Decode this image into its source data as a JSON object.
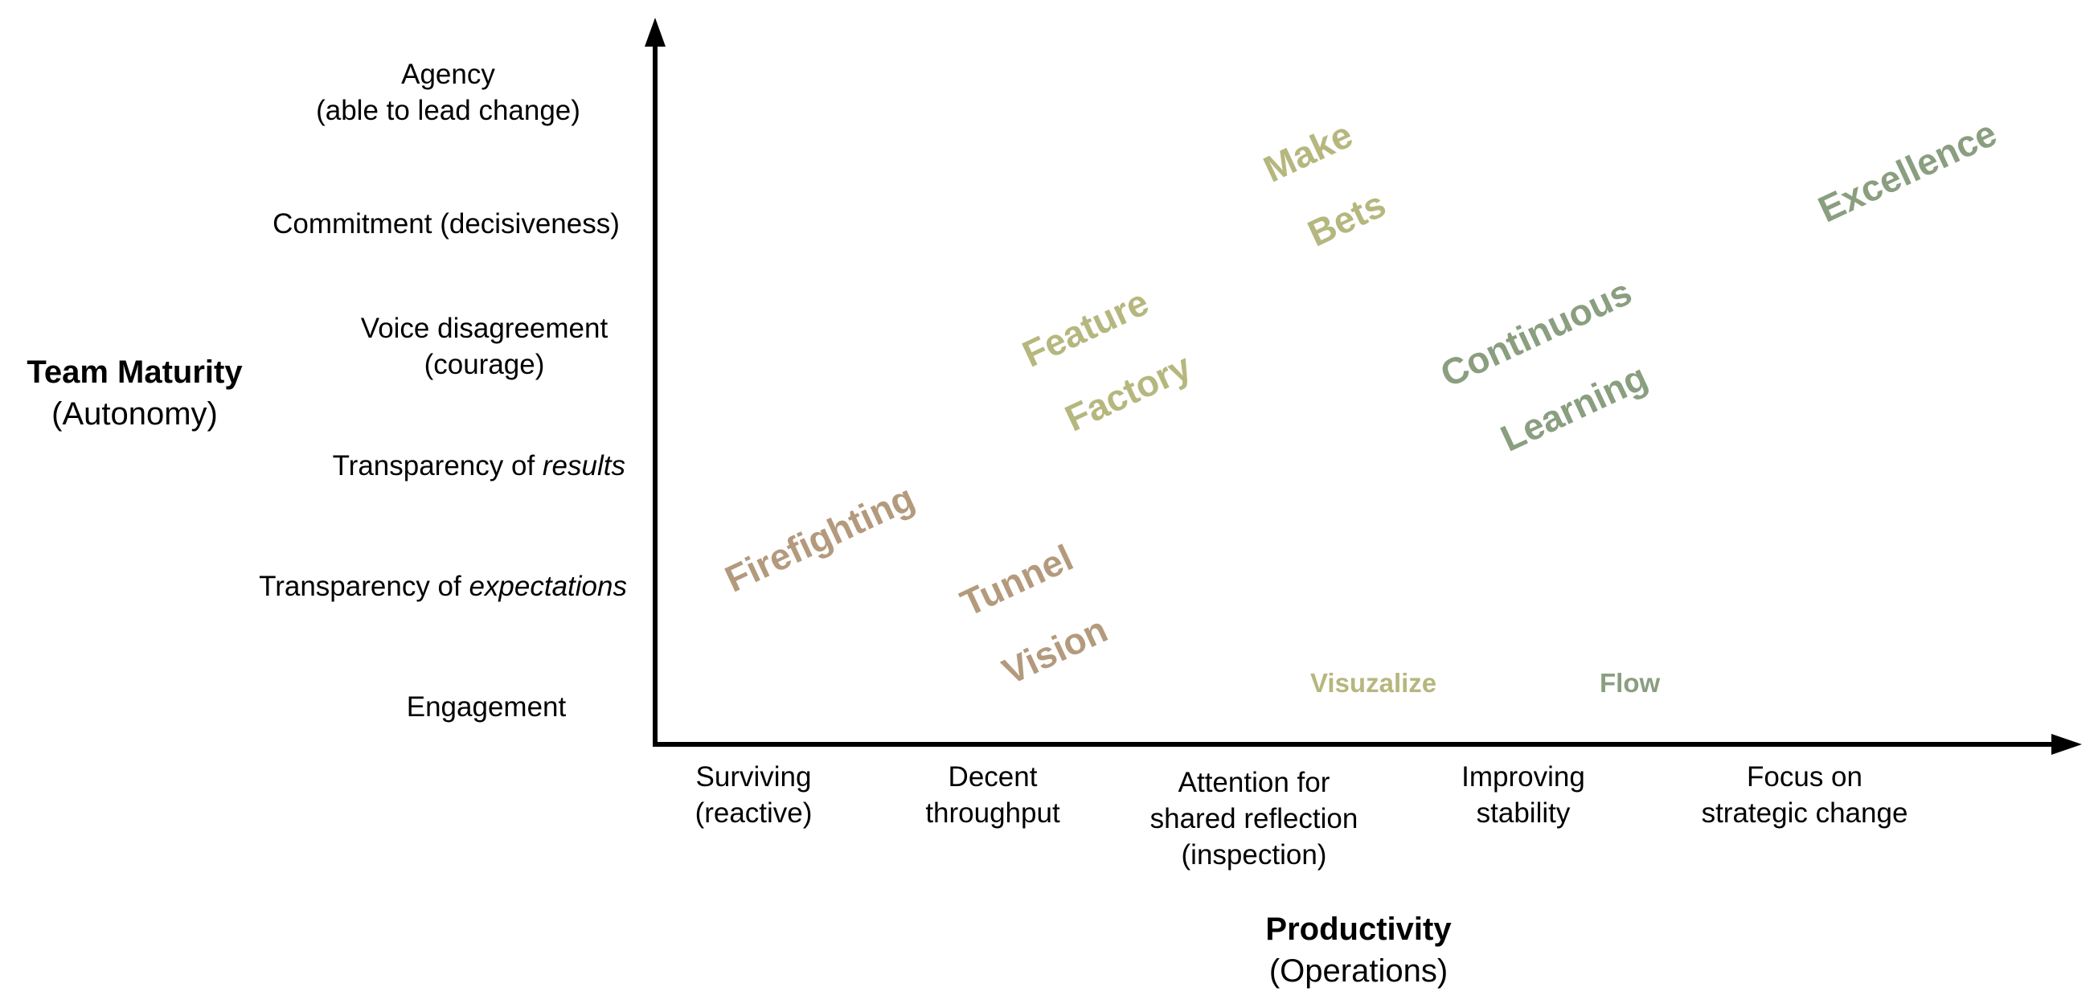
{
  "y_axis": {
    "title": "Team Maturity",
    "subtitle": "(Autonomy)",
    "levels": [
      {
        "line1": "Agency",
        "line2": "(able to lead change)"
      },
      {
        "line1": "Commitment (decisiveness)",
        "line2": ""
      },
      {
        "line1": "Voice disagreement",
        "line2": "(courage)"
      },
      {
        "prefix": "Transparency of ",
        "emph": "results"
      },
      {
        "prefix": "Transparency of ",
        "emph": "expectations"
      },
      {
        "line1": "Engagement",
        "line2": ""
      }
    ]
  },
  "x_axis": {
    "title": "Productivity",
    "subtitle": "(Operations)",
    "levels": [
      {
        "line1": "Surviving",
        "line2": "(reactive)",
        "line3": ""
      },
      {
        "line1": "Decent",
        "line2": "throughput",
        "line3": ""
      },
      {
        "line1": "Attention for",
        "line2": "shared reflection",
        "line3": "(inspection)"
      },
      {
        "line1": "Improving",
        "line2": "stability",
        "line3": ""
      },
      {
        "line1": "Focus on",
        "line2": "strategic change",
        "line3": ""
      }
    ]
  },
  "stages": {
    "firefighting": "Firefighting",
    "tunnel_1": "Tunnel",
    "tunnel_2": "Vision",
    "feature_1": "Feature",
    "feature_2": "Factory",
    "make_1": "Make",
    "make_2": "Bets",
    "continuous_1": "Continuous",
    "continuous_2": "Learning",
    "excellence": "Excellence",
    "visualize": "Visuzalize",
    "flow": "Flow"
  },
  "colors": {
    "beige": "#b49a7d",
    "olive": "#b6b77e",
    "sage": "#8a9e80",
    "axis": "#000000"
  }
}
